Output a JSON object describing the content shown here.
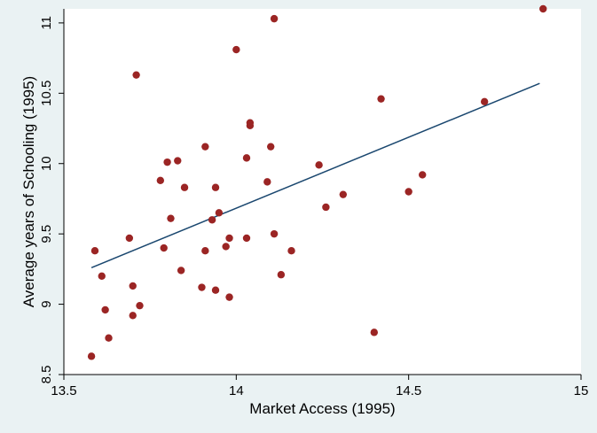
{
  "chart_data": {
    "type": "scatter",
    "title": "",
    "xlabel": "Market Access (1995)",
    "ylabel": "Average years of Schooling (1995)",
    "xlim": [
      13.5,
      15.0
    ],
    "ylim": [
      8.5,
      11.1
    ],
    "xticks": [
      13.5,
      14,
      14.5,
      15
    ],
    "xtick_labels": [
      "13.5",
      "14",
      "14.5",
      "15"
    ],
    "yticks": [
      8.5,
      9,
      9.5,
      10,
      10.5,
      11
    ],
    "ytick_labels": [
      "8.5",
      "9",
      "9.5",
      "10",
      "10.5",
      "11"
    ],
    "grid": false,
    "legend": "none",
    "colors": {
      "background": "#eaf2f3",
      "plot_area": "#ffffff",
      "points": "#9b2524",
      "fit_line": "#1a476f"
    },
    "series": [
      {
        "marker": "filled-circle",
        "points": [
          [
            13.58,
            8.63
          ],
          [
            13.59,
            9.38
          ],
          [
            13.61,
            9.2
          ],
          [
            13.62,
            8.96
          ],
          [
            13.63,
            8.76
          ],
          [
            13.69,
            9.47
          ],
          [
            13.7,
            9.13
          ],
          [
            13.7,
            8.92
          ],
          [
            13.71,
            10.63
          ],
          [
            13.72,
            8.99
          ],
          [
            13.78,
            9.88
          ],
          [
            13.79,
            9.4
          ],
          [
            13.8,
            10.01
          ],
          [
            13.81,
            9.61
          ],
          [
            13.83,
            10.02
          ],
          [
            13.84,
            9.24
          ],
          [
            13.85,
            9.83
          ],
          [
            13.9,
            9.12
          ],
          [
            13.91,
            10.12
          ],
          [
            13.91,
            9.38
          ],
          [
            13.93,
            9.6
          ],
          [
            13.94,
            9.83
          ],
          [
            13.94,
            9.1
          ],
          [
            13.95,
            9.65
          ],
          [
            13.97,
            9.41
          ],
          [
            13.98,
            9.47
          ],
          [
            13.98,
            9.05
          ],
          [
            14.0,
            10.81
          ],
          [
            14.03,
            9.47
          ],
          [
            14.03,
            10.04
          ],
          [
            14.04,
            10.27
          ],
          [
            14.04,
            10.29
          ],
          [
            14.09,
            9.87
          ],
          [
            14.1,
            10.12
          ],
          [
            14.11,
            11.03
          ],
          [
            14.11,
            9.5
          ],
          [
            14.13,
            9.21
          ],
          [
            14.16,
            9.38
          ],
          [
            14.24,
            9.99
          ],
          [
            14.26,
            9.69
          ],
          [
            14.31,
            9.78
          ],
          [
            14.4,
            8.8
          ],
          [
            14.42,
            10.46
          ],
          [
            14.5,
            9.8
          ],
          [
            14.54,
            9.92
          ],
          [
            14.72,
            10.44
          ],
          [
            14.89,
            11.1
          ]
        ]
      }
    ],
    "fit_line": {
      "type": "linear",
      "x": [
        13.58,
        14.88
      ],
      "y": [
        9.26,
        10.57
      ]
    }
  }
}
